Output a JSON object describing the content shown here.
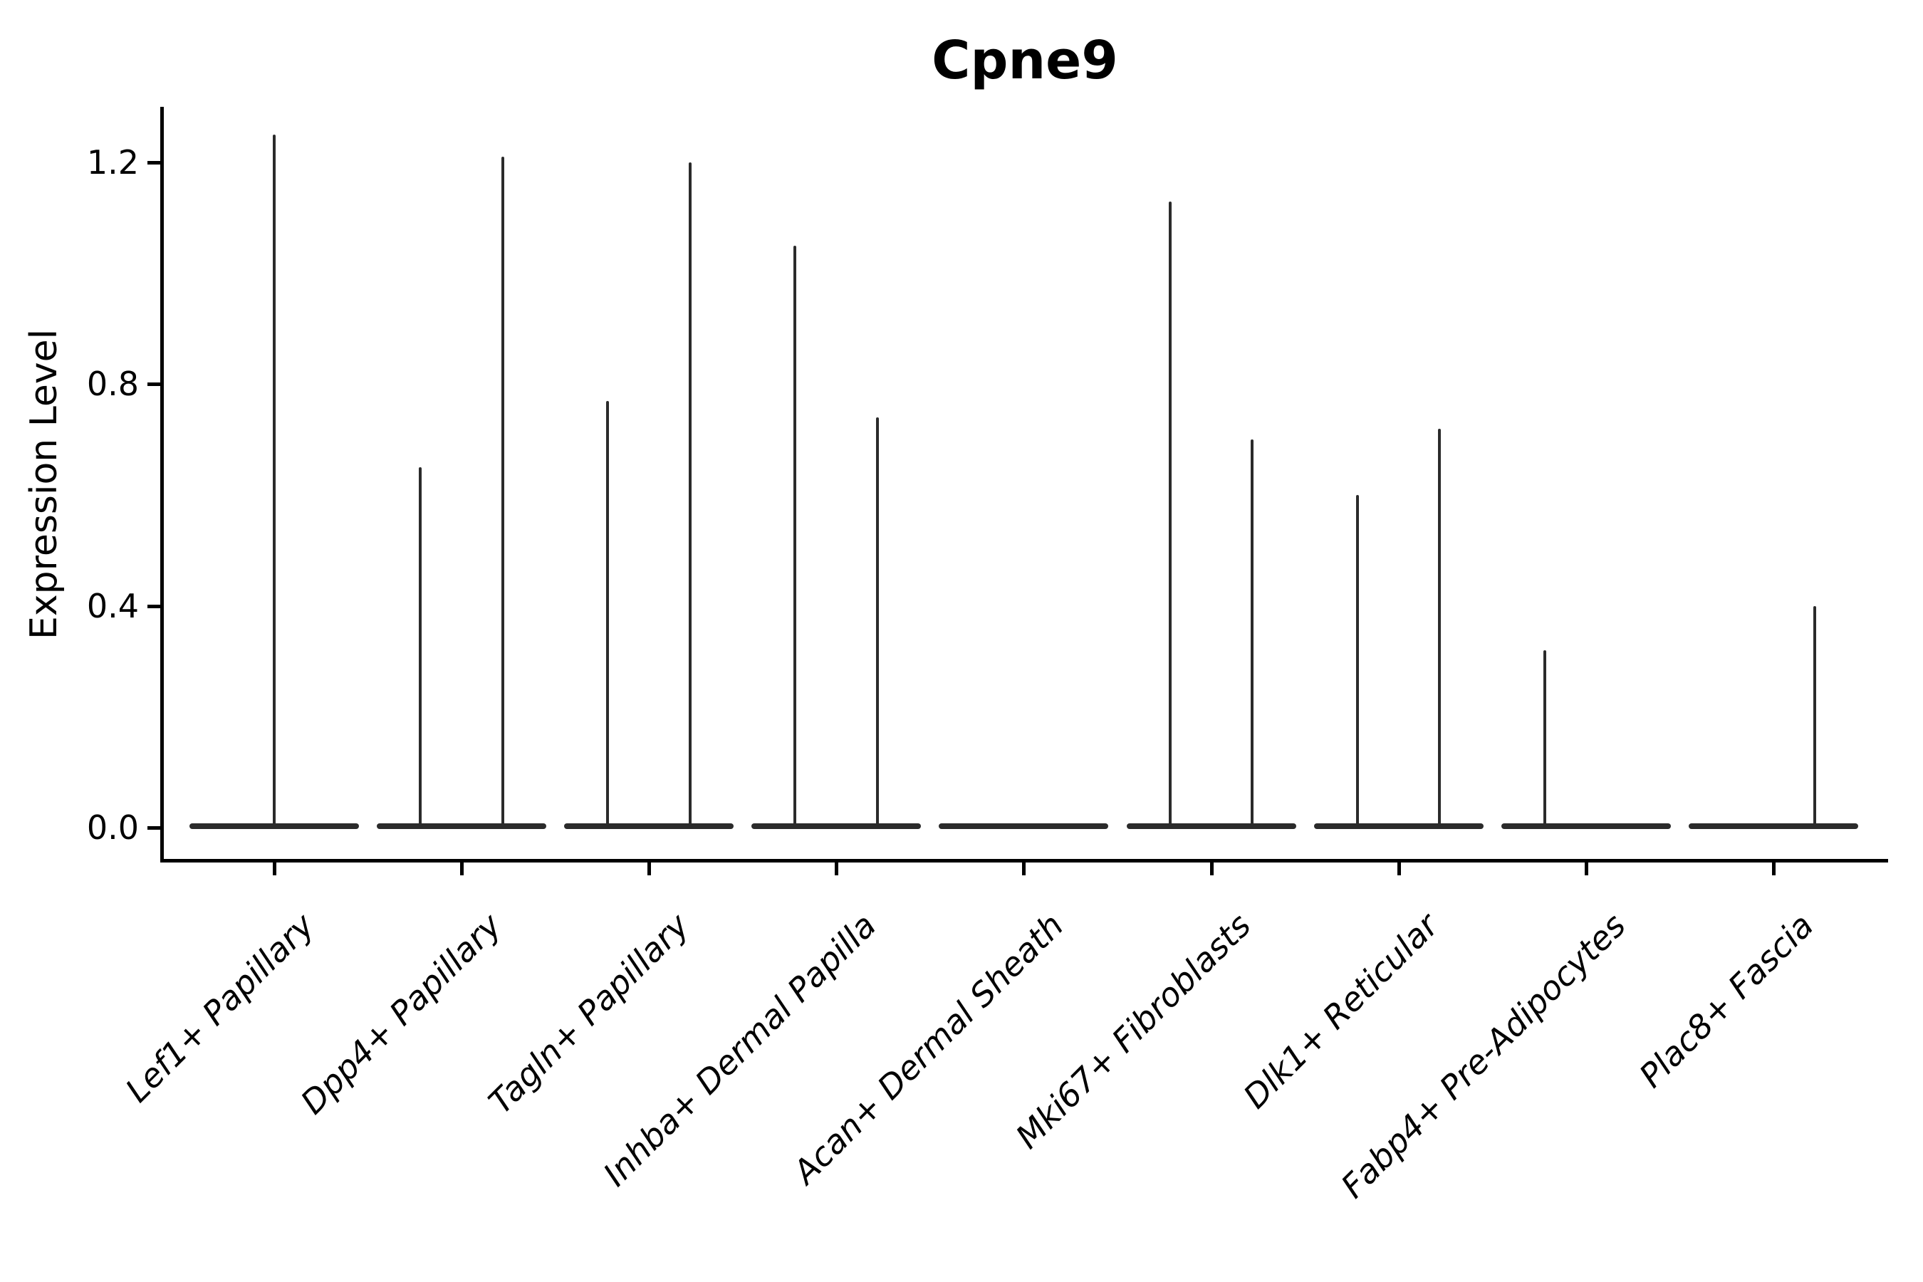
{
  "chart_data": {
    "type": "violin",
    "title": "Cpne9",
    "ylabel": "Expression Level",
    "xlabel": "",
    "ylim": [
      -0.06,
      1.3
    ],
    "yticks": [
      0.0,
      0.4,
      0.8,
      1.2
    ],
    "ytick_labels": [
      "0.0",
      "0.4",
      "0.8",
      "1.2"
    ],
    "grid": false,
    "legend": "none",
    "categories": [
      "Lef1+ Papillary",
      "Dpp4+ Papillary",
      "Tagln+ Papillary",
      "Inhba+ Dermal Papilla",
      "Acan+ Dermal Sheath",
      "Mki67+ Fibroblasts",
      "Dlk1+ Reticular",
      "Fabp4+ Pre-Adipocytes",
      "Plac8+ Fascia"
    ],
    "violins": [
      {
        "category": "Lef1+ Papillary",
        "zero_density_disc": true,
        "spikes": [
          {
            "offset": 0.0,
            "max": 1.25
          }
        ]
      },
      {
        "category": "Dpp4+ Papillary",
        "zero_density_disc": true,
        "spikes": [
          {
            "offset": -0.22,
            "max": 0.65
          },
          {
            "offset": 0.22,
            "max": 1.21
          }
        ]
      },
      {
        "category": "Tagln+ Papillary",
        "zero_density_disc": true,
        "spikes": [
          {
            "offset": -0.22,
            "max": 0.77
          },
          {
            "offset": 0.22,
            "max": 1.2
          }
        ]
      },
      {
        "category": "Inhba+ Dermal Papilla",
        "zero_density_disc": true,
        "spikes": [
          {
            "offset": -0.22,
            "max": 1.05
          },
          {
            "offset": 0.22,
            "max": 0.74
          }
        ]
      },
      {
        "category": "Acan+ Dermal Sheath",
        "zero_density_disc": true,
        "spikes": []
      },
      {
        "category": "Mki67+ Fibroblasts",
        "zero_density_disc": true,
        "spikes": [
          {
            "offset": -0.22,
            "max": 1.13
          },
          {
            "offset": 0.22,
            "max": 0.7
          }
        ]
      },
      {
        "category": "Dlk1+ Reticular",
        "zero_density_disc": true,
        "spikes": [
          {
            "offset": -0.22,
            "max": 0.6
          },
          {
            "offset": 0.22,
            "max": 0.72
          }
        ]
      },
      {
        "category": "Fabp4+ Pre-Adipocytes",
        "zero_density_disc": true,
        "spikes": [
          {
            "offset": -0.22,
            "max": 0.32
          }
        ]
      },
      {
        "category": "Plac8+ Fascia",
        "zero_density_disc": true,
        "spikes": [
          {
            "offset": 0.22,
            "max": 0.4
          }
        ]
      }
    ],
    "colors": {
      "violin_line": "#2b2b2b",
      "axis": "#000000",
      "text": "#000000",
      "background": "#ffffff"
    }
  }
}
